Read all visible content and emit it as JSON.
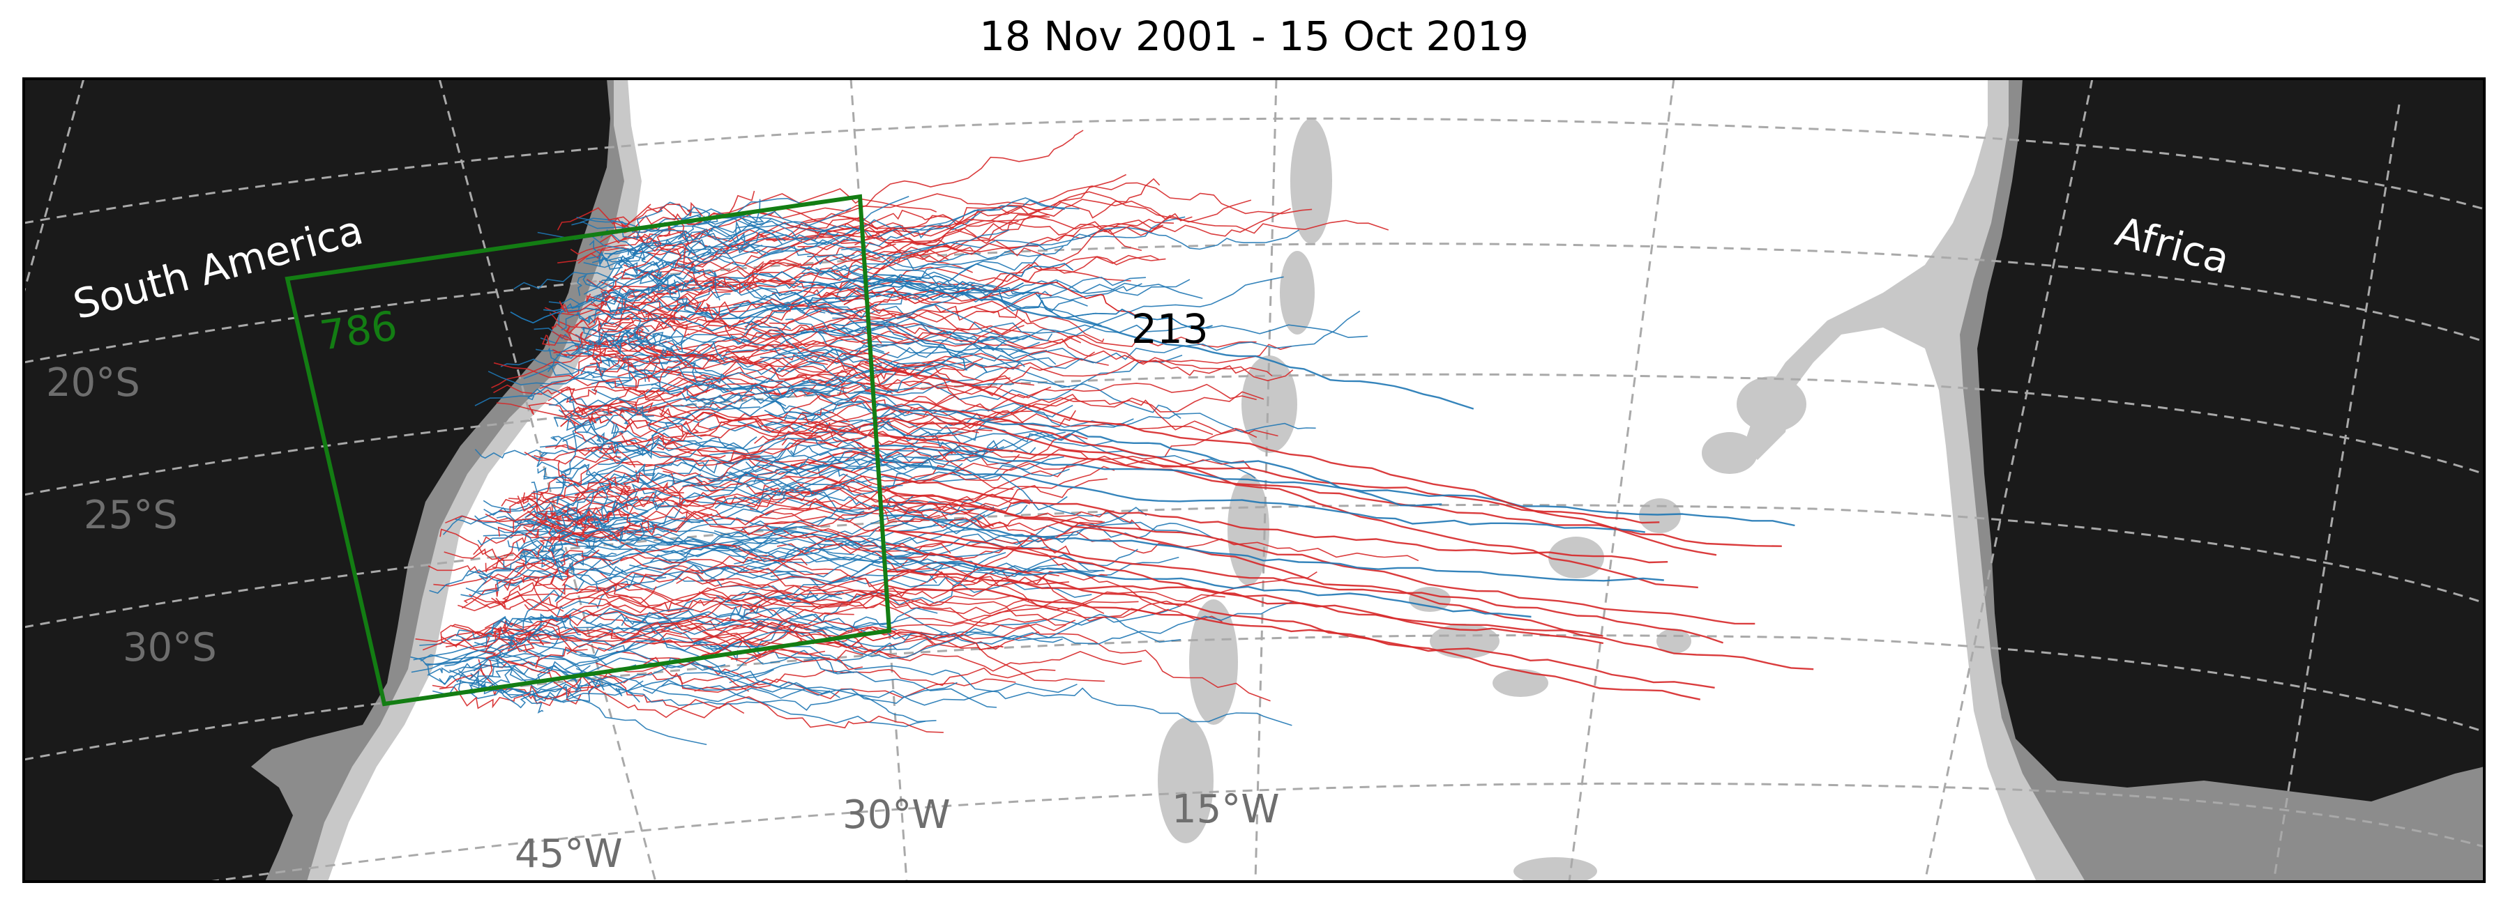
{
  "title": "18 Nov 2001 - 15 Oct 2019",
  "continent_labels": {
    "south_america": "South America",
    "africa": "Africa"
  },
  "grid_labels": {
    "lat_20": "20$^\\circ$S",
    "lat_25": "25$^\\circ$S",
    "lat_30": "30$^\\circ$S",
    "lon_45": "45$^\\circ$W",
    "lon_30": "30$^\\circ$W",
    "lon_15": "15$^\\circ$W"
  },
  "grid_label_display": {
    "lat_20": "20°S",
    "lat_25": "25°S",
    "lat_30": "30°S",
    "lon_45": "45°W",
    "lon_30": "30°W",
    "lon_15": "15°W"
  },
  "counts": {
    "box_count": "786",
    "offshore_count": "213"
  },
  "colors": {
    "land": "#1a1a1a",
    "shelf_dark": "#8c8c8c",
    "shelf_light": "#c8c8c8",
    "ocean": "#ffffff",
    "box": "#137d13",
    "track_red": "#d62728",
    "track_blue": "#1f77b4",
    "grid": "#a9a9a9",
    "grid_label": "#6e6e6e"
  },
  "legend": {
    "box_count_color": "#137d13",
    "offshore_count_color": "#000000"
  }
}
